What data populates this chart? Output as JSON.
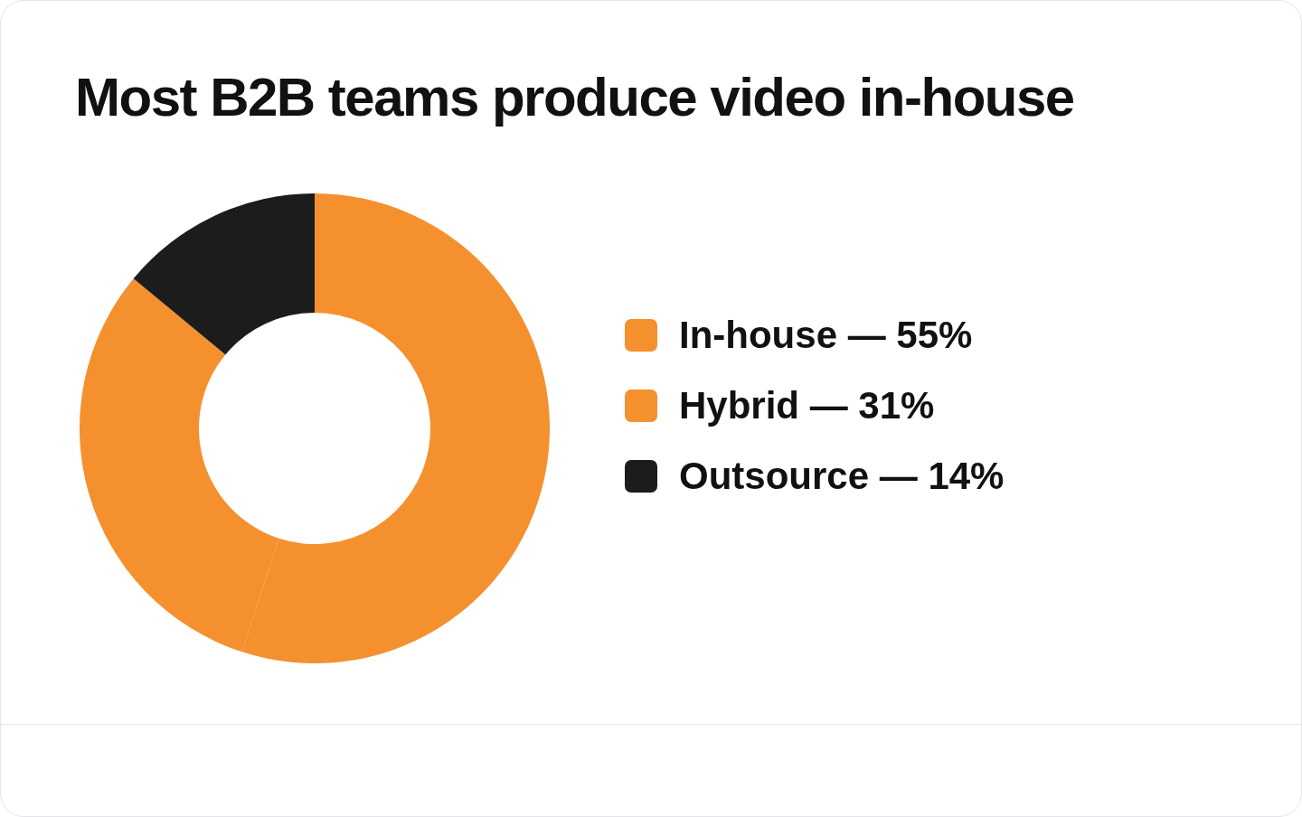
{
  "chart_data": {
    "type": "donut",
    "title": "Most B2B teams produce video in-house",
    "categories": [
      "In-house — 55%",
      "Hybrid — 31%",
      "Outsource — 14%"
    ],
    "values": [
      55,
      31,
      14
    ],
    "colors": [
      "#f5902f",
      "#f5902f",
      "#1c1c1c"
    ],
    "legend": "right"
  }
}
